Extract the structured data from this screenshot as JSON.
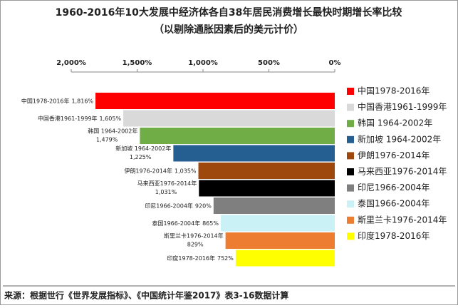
{
  "chart_data": {
    "type": "hbar",
    "title": "1960-2016年10大发展中经济体各自38年居民消费增长最快时期增长率比较",
    "subtitle": "（以剔除通胀因素后的美元计价）",
    "categories": [
      "中国1978-2016年",
      "中国香港1961-1999年",
      "韩国 1964-2002年",
      "新加坡 1964-2002年",
      "伊朗1976-2014年",
      "马来西亚1976-2014年",
      "印尼1966-2004年",
      "泰国1966-2004年",
      "斯里兰卡1976-2014年",
      "印度1978-2016年"
    ],
    "values": [
      1816,
      1605,
      1479,
      1225,
      1035,
      1031,
      920,
      865,
      829,
      752
    ],
    "value_labels": [
      "1,816%",
      "1,605%",
      "1,479%",
      "1,225%",
      "1,035%",
      "1,031%",
      "920%",
      "865%",
      "829%",
      "752%"
    ],
    "colors": [
      "#ff0000",
      "#d9d9d9",
      "#70ad47",
      "#255e91",
      "#9e480e",
      "#000000",
      "#7f7f7f",
      "#c9f1f6",
      "#ed7d31",
      "#ffff00"
    ],
    "xlim": [
      2000,
      0
    ],
    "xticks": [
      {
        "value": 2000,
        "label": "2,000%"
      },
      {
        "value": 1500,
        "label": "1,500%"
      },
      {
        "value": 1000,
        "label": "1,000%"
      },
      {
        "value": 500,
        "label": "500%"
      },
      {
        "value": 0,
        "label": "0%"
      }
    ],
    "legend": "right",
    "source": "来源：根据世行《世界发展指标》、《中国统计年鉴2017》表3-16数据计算"
  }
}
